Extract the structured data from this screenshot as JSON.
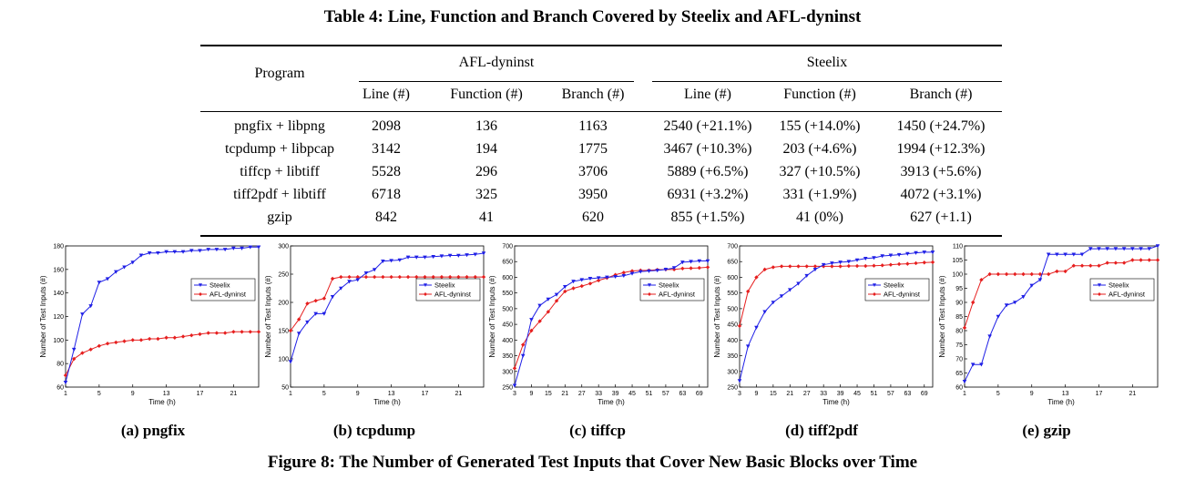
{
  "table": {
    "caption": "Table 4: Line, Function and Branch Covered by Steelix and AFL-dyninst",
    "program_header": "Program",
    "groups": [
      "AFL-dyninst",
      "Steelix"
    ],
    "subheaders": [
      "Line (#)",
      "Function (#)",
      "Branch (#)",
      "Line (#)",
      "Function (#)",
      "Branch (#)"
    ],
    "rows": [
      [
        "pngfix + libpng",
        "2098",
        "136",
        "1163",
        "2540 (+21.1%)",
        "155 (+14.0%)",
        "1450 (+24.7%)"
      ],
      [
        "tcpdump + libpcap",
        "3142",
        "194",
        "1775",
        "3467 (+10.3%)",
        "203 (+4.6%)",
        "1994 (+12.3%)"
      ],
      [
        "tiffcp + libtiff",
        "5528",
        "296",
        "3706",
        "5889 (+6.5%)",
        "327 (+10.5%)",
        "3913 (+5.6%)"
      ],
      [
        "tiff2pdf + libtiff",
        "6718",
        "325",
        "3950",
        "6931 (+3.2%)",
        "331 (+1.9%)",
        "4072 (+3.1%)"
      ],
      [
        "gzip",
        "842",
        "41",
        "620",
        "855 (+1.5%)",
        "41 (0%)",
        "627 (+1.1)"
      ]
    ]
  },
  "figure": {
    "caption": "Figure 8: The Number of Generated Test Inputs that Cover New Basic Blocks over Time",
    "subcaptions": [
      "(a) pngfix",
      "(b) tcpdump",
      "(c) tiffcp",
      "(d) tiff2pdf",
      "(e) gzip"
    ],
    "colors": {
      "steelix": "#1f1fe6",
      "afl": "#e61f1f"
    }
  },
  "chart_data": [
    {
      "type": "line",
      "xlabel": "Time (h)",
      "ylabel": "Number of Test Inputs (#)",
      "xlim": [
        1,
        24
      ],
      "ylim": [
        60,
        180
      ],
      "xticks": [
        1,
        5,
        9,
        13,
        17,
        21
      ],
      "yticks": [
        60,
        80,
        100,
        120,
        140,
        160,
        180
      ],
      "legend": "right",
      "x": [
        1,
        2,
        3,
        4,
        5,
        6,
        7,
        8,
        9,
        10,
        11,
        12,
        13,
        14,
        15,
        16,
        17,
        18,
        19,
        20,
        21,
        22,
        23,
        24
      ],
      "series": [
        {
          "name": "Steelix",
          "values": [
            64,
            92,
            122,
            129,
            149,
            152,
            158,
            162,
            166,
            172,
            174,
            174,
            175,
            175,
            175,
            176,
            176,
            177,
            177,
            177,
            178,
            178,
            179,
            179
          ]
        },
        {
          "name": "AFL-dyninst",
          "values": [
            70,
            84,
            89,
            92,
            95,
            97,
            98,
            99,
            100,
            100,
            101,
            101,
            102,
            102,
            103,
            104,
            105,
            106,
            106,
            106,
            107,
            107,
            107,
            107
          ]
        }
      ]
    },
    {
      "type": "line",
      "xlabel": "Time (h)",
      "ylabel": "Number of Test Inputs (#)",
      "xlim": [
        1,
        24
      ],
      "ylim": [
        50,
        300
      ],
      "xticks": [
        1,
        5,
        9,
        13,
        17,
        21
      ],
      "yticks": [
        50,
        100,
        150,
        200,
        250,
        300
      ],
      "legend": "right",
      "x": [
        1,
        2,
        3,
        4,
        5,
        6,
        7,
        8,
        9,
        10,
        11,
        12,
        13,
        14,
        15,
        16,
        17,
        18,
        19,
        20,
        21,
        22,
        23,
        24
      ],
      "series": [
        {
          "name": "Steelix",
          "values": [
            95,
            145,
            165,
            180,
            180,
            210,
            225,
            237,
            240,
            252,
            258,
            273,
            274,
            275,
            280,
            280,
            280,
            281,
            282,
            283,
            283,
            284,
            285,
            287
          ]
        },
        {
          "name": "AFL-dyninst",
          "values": [
            150,
            170,
            198,
            203,
            207,
            242,
            245,
            245,
            245,
            245,
            245,
            245,
            245,
            245,
            245,
            245,
            245,
            245,
            245,
            245,
            245,
            245,
            245,
            245
          ]
        }
      ]
    },
    {
      "type": "line",
      "xlabel": "Time (h)",
      "ylabel": "Number of Test Inputs (#)",
      "xlim": [
        3,
        72
      ],
      "ylim": [
        250,
        700
      ],
      "xticks": [
        3,
        9,
        15,
        21,
        27,
        33,
        39,
        45,
        51,
        57,
        63,
        69
      ],
      "yticks": [
        250,
        300,
        350,
        400,
        450,
        500,
        550,
        600,
        650,
        700
      ],
      "legend": "right",
      "x": [
        3,
        6,
        9,
        12,
        15,
        18,
        21,
        24,
        27,
        30,
        33,
        36,
        39,
        42,
        45,
        48,
        51,
        54,
        57,
        60,
        63,
        66,
        69,
        72
      ],
      "series": [
        {
          "name": "Steelix",
          "values": [
            255,
            350,
            465,
            510,
            530,
            545,
            570,
            587,
            592,
            596,
            598,
            600,
            602,
            605,
            612,
            618,
            620,
            622,
            625,
            630,
            648,
            650,
            652,
            652
          ]
        },
        {
          "name": "AFL-dyninst",
          "values": [
            310,
            385,
            430,
            460,
            490,
            525,
            555,
            565,
            572,
            580,
            590,
            598,
            608,
            615,
            620,
            622,
            622,
            624,
            625,
            625,
            628,
            629,
            630,
            632
          ]
        }
      ]
    },
    {
      "type": "line",
      "xlabel": "Time (h)",
      "ylabel": "Number of Test Inputs (#)",
      "xlim": [
        3,
        72
      ],
      "ylim": [
        250,
        700
      ],
      "xticks": [
        3,
        9,
        15,
        21,
        27,
        33,
        39,
        45,
        51,
        57,
        63,
        69
      ],
      "yticks": [
        250,
        300,
        350,
        400,
        450,
        500,
        550,
        600,
        650,
        700
      ],
      "legend": "right",
      "x": [
        3,
        6,
        9,
        12,
        15,
        18,
        21,
        24,
        27,
        30,
        33,
        36,
        39,
        42,
        45,
        48,
        51,
        54,
        57,
        60,
        63,
        66,
        69,
        72
      ],
      "series": [
        {
          "name": "Steelix",
          "values": [
            270,
            380,
            440,
            490,
            520,
            540,
            560,
            580,
            605,
            625,
            640,
            645,
            648,
            650,
            655,
            660,
            662,
            668,
            670,
            672,
            675,
            678,
            680,
            680
          ]
        },
        {
          "name": "AFL-dyninst",
          "values": [
            445,
            555,
            600,
            625,
            632,
            635,
            635,
            635,
            635,
            635,
            635,
            635,
            635,
            636,
            636,
            636,
            637,
            638,
            640,
            642,
            643,
            645,
            647,
            648
          ]
        }
      ]
    },
    {
      "type": "line",
      "xlabel": "Time (h)",
      "ylabel": "Number of Test Inputs (#)",
      "xlim": [
        1,
        24
      ],
      "ylim": [
        60,
        110
      ],
      "xticks": [
        1,
        5,
        9,
        13,
        17,
        21
      ],
      "yticks": [
        60,
        65,
        70,
        75,
        80,
        85,
        90,
        95,
        100,
        105,
        110
      ],
      "legend": "right",
      "x": [
        1,
        2,
        3,
        4,
        5,
        6,
        7,
        8,
        9,
        10,
        11,
        12,
        13,
        14,
        15,
        16,
        17,
        18,
        19,
        20,
        21,
        22,
        23,
        24
      ],
      "series": [
        {
          "name": "Steelix",
          "values": [
            62,
            68,
            68,
            78,
            85,
            89,
            90,
            92,
            96,
            98,
            107,
            107,
            107,
            107,
            107,
            109,
            109,
            109,
            109,
            109,
            109,
            109,
            109,
            110
          ]
        },
        {
          "name": "AFL-dyninst",
          "values": [
            81,
            90,
            98,
            100,
            100,
            100,
            100,
            100,
            100,
            100,
            100,
            101,
            101,
            103,
            103,
            103,
            103,
            104,
            104,
            104,
            105,
            105,
            105,
            105
          ]
        }
      ]
    }
  ]
}
